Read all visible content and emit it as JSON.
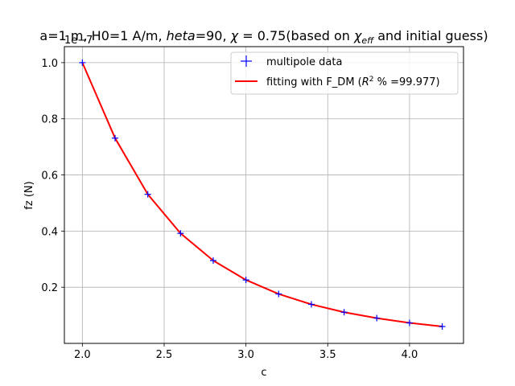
{
  "chart_data": {
    "type": "line",
    "title": {
      "prefix": "a=1 m, H0=1 A/m, ",
      "theta_symbol": "heta",
      "theta_part": "=90, ",
      "chi_symbol": "χ",
      "chi_part": " = 0.75(based on ",
      "chi_eff_symbol": "χ",
      "chi_eff_sub": "eff",
      "suffix": " and initial guess)"
    },
    "xlabel": "c",
    "ylabel": "fz (N)",
    "offset_text": "1e−7",
    "xlim": [
      1.89,
      4.33
    ],
    "ylim": [
      0.0,
      1.057
    ],
    "x_ticks": [
      2.0,
      2.5,
      3.0,
      3.5,
      4.0
    ],
    "x_tick_labels": [
      "2.0",
      "2.5",
      "3.0",
      "3.5",
      "4.0"
    ],
    "y_ticks": [
      0.2,
      0.4,
      0.6,
      0.8,
      1.0
    ],
    "y_tick_labels": [
      "0.2",
      "0.4",
      "0.6",
      "0.8",
      "1.0"
    ],
    "grid": true,
    "legend_position": "top-right",
    "series": [
      {
        "name": "multipole data",
        "kind": "marker",
        "marker": "+",
        "color": "#0000ff",
        "x": [
          2.0,
          2.2,
          2.4,
          2.6,
          2.8,
          3.0,
          3.2,
          3.4,
          3.6,
          3.8,
          4.0,
          4.2
        ],
        "y": [
          1.0,
          0.731,
          0.531,
          0.392,
          0.295,
          0.226,
          0.176,
          0.139,
          0.111,
          0.09,
          0.073,
          0.06
        ]
      },
      {
        "name": "fitting with F_DM (",
        "name_r": "R",
        "name_sup": "2",
        "name_tail": " % =99.977)",
        "kind": "line",
        "color": "#ff0000",
        "x": [
          2.0,
          2.2,
          2.4,
          2.6,
          2.8,
          3.0,
          3.2,
          3.4,
          3.6,
          3.8,
          4.0,
          4.2
        ],
        "y": [
          1.0,
          0.731,
          0.531,
          0.392,
          0.295,
          0.226,
          0.176,
          0.139,
          0.111,
          0.09,
          0.073,
          0.06
        ]
      }
    ]
  }
}
